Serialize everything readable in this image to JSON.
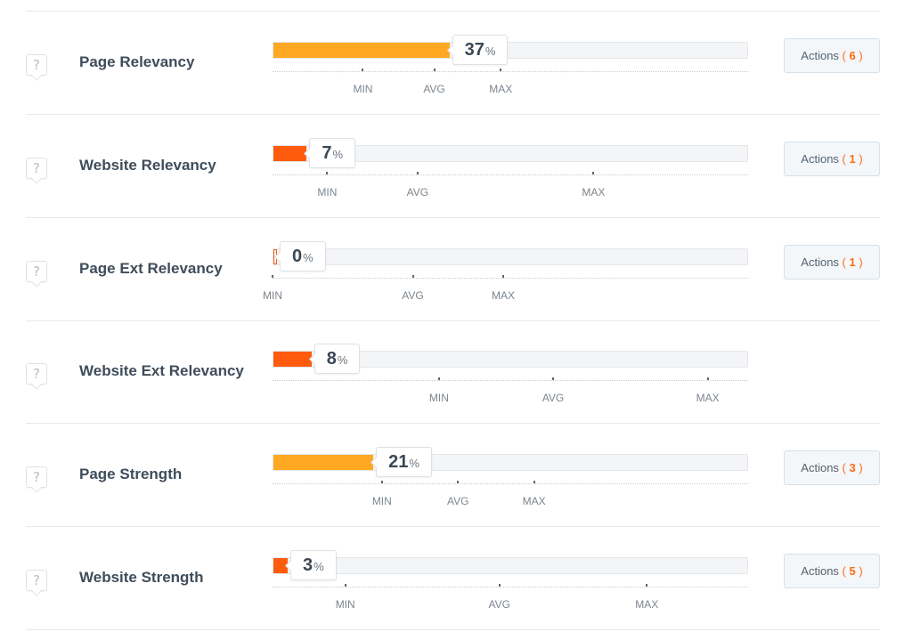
{
  "colors": {
    "high_fill": "#ffa822",
    "low_fill": "#ff5b0f",
    "accent": "#ff6a13"
  },
  "help_icon_glyph": "?",
  "scale_labels": {
    "min": "MIN",
    "avg": "AVG",
    "max": "MAX"
  },
  "actions_label": "Actions",
  "rows": [
    {
      "label": "Page Relevancy",
      "value": "37",
      "percent": 37,
      "fill_level": "high",
      "min": 19,
      "avg": 34,
      "max": 48,
      "actions_count": "6"
    },
    {
      "label": "Website Relevancy",
      "value": "7",
      "percent": 7,
      "fill_level": "low",
      "min": 11.5,
      "avg": 30.5,
      "max": 67.5,
      "actions_count": "1"
    },
    {
      "label": "Page Ext Relevancy",
      "value": "0",
      "percent": 0,
      "fill_level": "low",
      "min": 0,
      "avg": 29.5,
      "max": 48.5,
      "actions_count": "1"
    },
    {
      "label": "Website Ext Relevancy",
      "value": "8",
      "percent": 8,
      "fill_level": "low",
      "min": 35,
      "avg": 59,
      "max": 91.5,
      "actions_count": null
    },
    {
      "label": "Page Strength",
      "value": "21",
      "percent": 21,
      "fill_level": "high",
      "min": 23,
      "avg": 39,
      "max": 55,
      "actions_count": "3"
    },
    {
      "label": "Website Strength",
      "value": "3",
      "percent": 3,
      "fill_level": "low",
      "min": 15.3,
      "avg": 47.7,
      "max": 78.7,
      "actions_count": "5"
    }
  ]
}
